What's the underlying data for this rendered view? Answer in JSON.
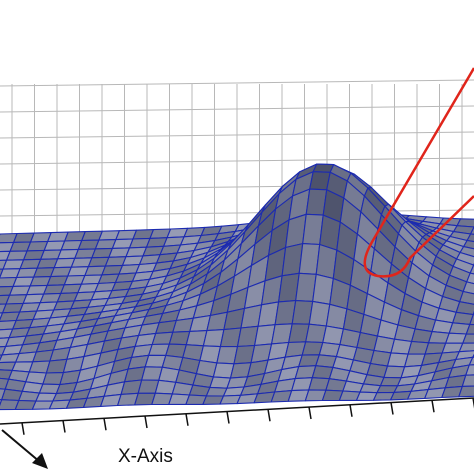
{
  "figure": {
    "x_axis_label": "X-Axis"
  }
}
